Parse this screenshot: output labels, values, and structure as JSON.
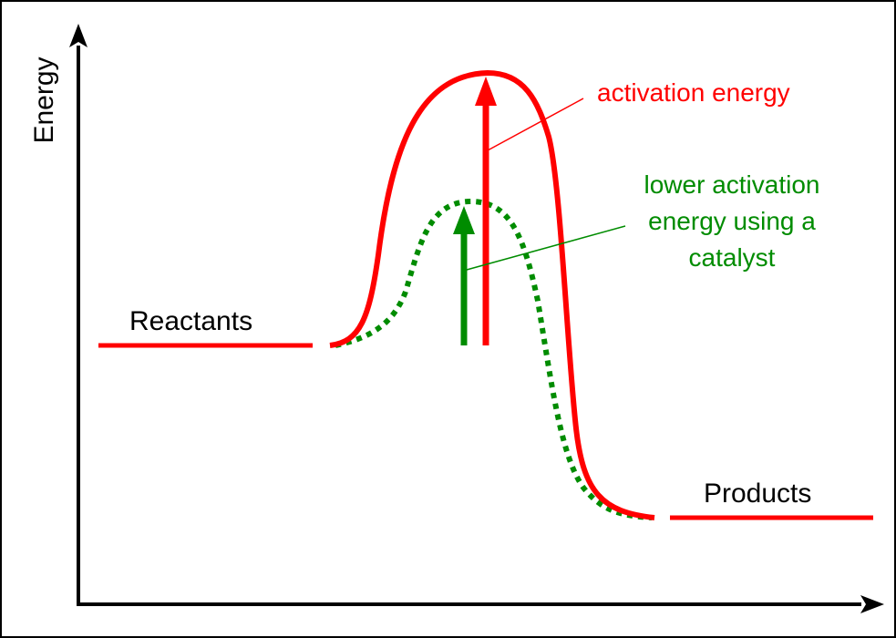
{
  "labels": {
    "y_axis": "Energy",
    "reactants": "Reactants",
    "products": "Products",
    "activation": "activation energy",
    "catalyst_lines": [
      "lower activation",
      "energy using a",
      "catalyst"
    ]
  },
  "colors": {
    "uncatalysed": "#ff0000",
    "catalysed": "#008c00",
    "axes": "#000000"
  }
}
